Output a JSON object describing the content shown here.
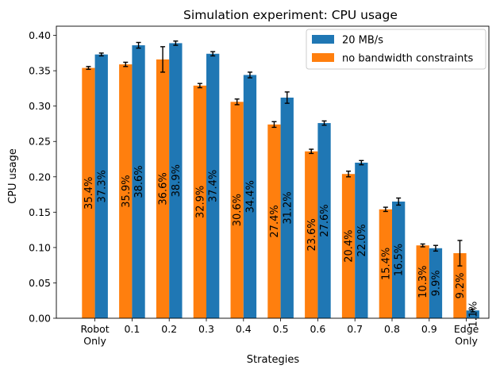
{
  "chart_data": {
    "type": "bar",
    "title": "Simulation experiment: CPU usage",
    "xlabel": "Strategies",
    "ylabel": "CPU usage",
    "ylim": [
      0,
      0.413
    ],
    "yticks": [
      "0.00",
      "0.05",
      "0.10",
      "0.15",
      "0.20",
      "0.25",
      "0.30",
      "0.35",
      "0.40"
    ],
    "categories": [
      "Robot\nOnly",
      "0.1",
      "0.2",
      "0.3",
      "0.4",
      "0.5",
      "0.6",
      "0.7",
      "0.8",
      "0.9",
      "Edge\nOnly"
    ],
    "legend_position": "top-right",
    "series": [
      {
        "name": "20 MB/s",
        "color": "#1f77b4",
        "values": [
          0.373,
          0.386,
          0.389,
          0.374,
          0.344,
          0.312,
          0.276,
          0.22,
          0.165,
          0.099,
          0.011
        ],
        "errors": [
          0.002,
          0.004,
          0.003,
          0.003,
          0.004,
          0.008,
          0.003,
          0.003,
          0.005,
          0.004,
          0.002
        ],
        "labels": [
          "37.3%",
          "38.6%",
          "38.9%",
          "37.4%",
          "34.4%",
          "31.2%",
          "27.6%",
          "22.0%",
          "16.5%",
          "9.9%",
          "1.1%"
        ]
      },
      {
        "name": "no bandwidth constraints",
        "color": "#ff7f0e",
        "values": [
          0.354,
          0.359,
          0.366,
          0.329,
          0.306,
          0.274,
          0.236,
          0.204,
          0.154,
          0.103,
          0.092
        ],
        "errors": [
          0.002,
          0.003,
          0.018,
          0.003,
          0.004,
          0.004,
          0.003,
          0.004,
          0.003,
          0.002,
          0.018
        ],
        "labels": [
          "35.4%",
          "35.9%",
          "36.6%",
          "32.9%",
          "30.6%",
          "27.4%",
          "23.6%",
          "20.4%",
          "15.4%",
          "10.3%",
          "9.2%"
        ]
      }
    ]
  }
}
